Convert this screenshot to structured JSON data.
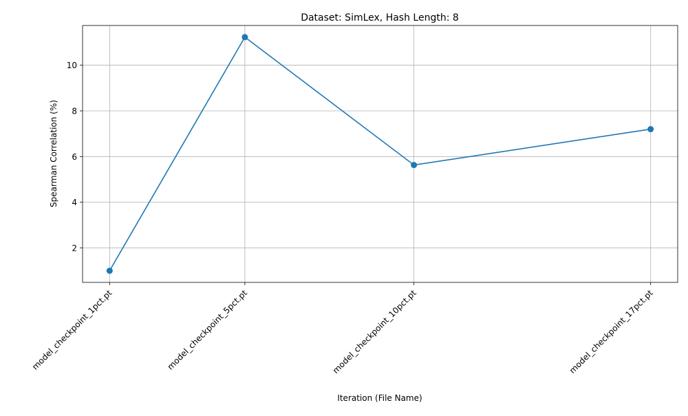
{
  "chart_data": {
    "type": "line",
    "title": "Dataset: SimLex, Hash Length: 8",
    "xlabel": "Iteration (File Name)",
    "ylabel": "Spearman Correlation (%)",
    "x": [
      1,
      5,
      10,
      17
    ],
    "categories": [
      "model_checkpoint_1pct.pt",
      "model_checkpoint_5pct.pt",
      "model_checkpoint_10pct.pt",
      "model_checkpoint_17pct.pt"
    ],
    "series": [
      {
        "values": [
          1.0,
          11.23,
          5.63,
          7.2
        ]
      }
    ],
    "yticks": [
      2,
      4,
      6,
      8,
      10
    ],
    "ylim": [
      0.49,
      11.74
    ],
    "xlim": [
      0.2,
      17.8
    ],
    "grid": true,
    "marker": "circle",
    "line_color": "#1f77b4"
  }
}
